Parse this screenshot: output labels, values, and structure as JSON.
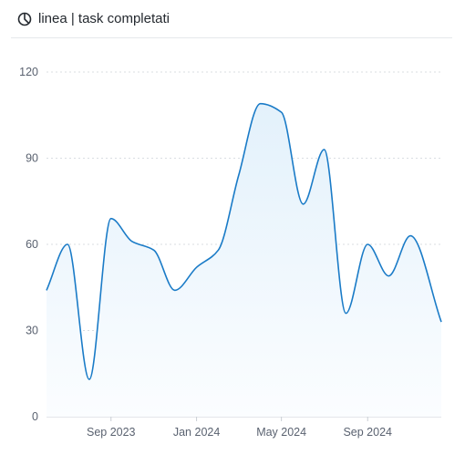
{
  "header": {
    "title": "linea | task completati",
    "icon": "pie-chart-icon"
  },
  "colors": {
    "line": "#1a7bc7",
    "fill_top": "#e3f1fb",
    "fill_bottom": "#fbfdff",
    "grid": "#d9dde2",
    "axis": "#c9ced4"
  },
  "chart_data": {
    "type": "area",
    "title": "",
    "xlabel": "",
    "ylabel": "",
    "ylim": [
      0,
      120
    ],
    "yticks": [
      0,
      30,
      60,
      90,
      120
    ],
    "xlim": [
      "2023-06-01",
      "2024-12-15"
    ],
    "xticks": [
      {
        "label": "Sep 2023",
        "date": "2023-09-01"
      },
      {
        "label": "Jan 2024",
        "date": "2024-01-01"
      },
      {
        "label": "May 2024",
        "date": "2024-05-01"
      },
      {
        "label": "Sep 2024",
        "date": "2024-09-01"
      }
    ],
    "grid": true,
    "series": [
      {
        "name": "",
        "points": [
          {
            "x": "2023-06-01",
            "y": 44
          },
          {
            "x": "2023-07-01",
            "y": 60
          },
          {
            "x": "2023-08-01",
            "y": 13
          },
          {
            "x": "2023-09-01",
            "y": 69
          },
          {
            "x": "2023-10-01",
            "y": 61
          },
          {
            "x": "2023-11-01",
            "y": 58
          },
          {
            "x": "2023-12-01",
            "y": 44
          },
          {
            "x": "2024-01-01",
            "y": 52
          },
          {
            "x": "2024-02-01",
            "y": 58
          },
          {
            "x": "2024-03-01",
            "y": 84
          },
          {
            "x": "2024-04-01",
            "y": 109
          },
          {
            "x": "2024-05-01",
            "y": 106
          },
          {
            "x": "2024-06-01",
            "y": 74
          },
          {
            "x": "2024-07-01",
            "y": 93
          },
          {
            "x": "2024-08-01",
            "y": 36
          },
          {
            "x": "2024-09-01",
            "y": 60
          },
          {
            "x": "2024-10-01",
            "y": 49
          },
          {
            "x": "2024-11-01",
            "y": 63
          },
          {
            "x": "2024-12-15",
            "y": 33
          }
        ]
      }
    ]
  }
}
